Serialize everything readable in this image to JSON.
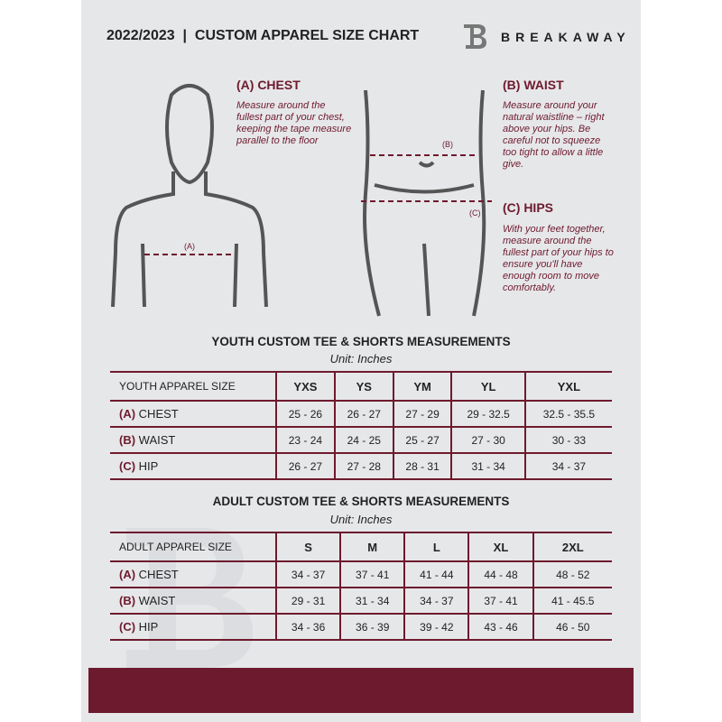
{
  "header": {
    "title": "2022/2023  |  CUSTOM APPAREL SIZE CHART",
    "brand": "BREAKAWAY",
    "brand_mark": "B"
  },
  "measures": {
    "chest": {
      "label": "(A) CHEST",
      "tag": "(A)",
      "text": "Measure around the fullest part of your chest, keeping the tape measure parallel to the floor"
    },
    "waist": {
      "label": "(B) WAIST",
      "tag": "(B)",
      "text": "Measure around your natural waistline – right above your hips. Be careful not to squeeze too tight to allow a little give."
    },
    "hips": {
      "label": "(C) HIPS",
      "tag": "(C)",
      "text": "With your feet together, measure around the fullest part of your hips to ensure you'll have enough room to move comfortably."
    }
  },
  "youth": {
    "title": "YOUTH CUSTOM TEE & SHORTS MEASUREMENTS",
    "unit": "Unit: Inches",
    "size_label": "YOUTH APPAREL SIZE",
    "sizes": [
      "YXS",
      "YS",
      "YM",
      "YL",
      "YXL"
    ],
    "rows": [
      {
        "tag": "(A)",
        "name": "CHEST",
        "values": [
          "25 - 26",
          "26 - 27",
          "27 - 29",
          "29 - 32.5",
          "32.5 - 35.5"
        ]
      },
      {
        "tag": "(B)",
        "name": "WAIST",
        "values": [
          "23 - 24",
          "24 - 25",
          "25 - 27",
          "27 - 30",
          "30 - 33"
        ]
      },
      {
        "tag": "(C)",
        "name": "HIP",
        "values": [
          "26 - 27",
          "27 - 28",
          "28 - 31",
          "31 - 34",
          "34 - 37"
        ]
      }
    ]
  },
  "adult": {
    "title": "ADULT CUSTOM TEE & SHORTS MEASUREMENTS",
    "unit": "Unit: Inches",
    "size_label": "ADULT APPAREL SIZE",
    "sizes": [
      "S",
      "M",
      "L",
      "XL",
      "2XL"
    ],
    "rows": [
      {
        "tag": "(A)",
        "name": "CHEST",
        "values": [
          "34 - 37",
          "37 - 41",
          "41 - 44",
          "44 - 48",
          "48 - 52"
        ]
      },
      {
        "tag": "(B)",
        "name": "WAIST",
        "values": [
          "29 - 31",
          "31 - 34",
          "34 - 37",
          "37 - 41",
          "41 - 45.5"
        ]
      },
      {
        "tag": "(C)",
        "name": "HIP",
        "values": [
          "34 - 36",
          "36 - 39",
          "39 - 42",
          "43 - 46",
          "46 - 50"
        ]
      }
    ]
  },
  "colors": {
    "accent": "#6e1a2e",
    "background": "#e6e7e9"
  }
}
